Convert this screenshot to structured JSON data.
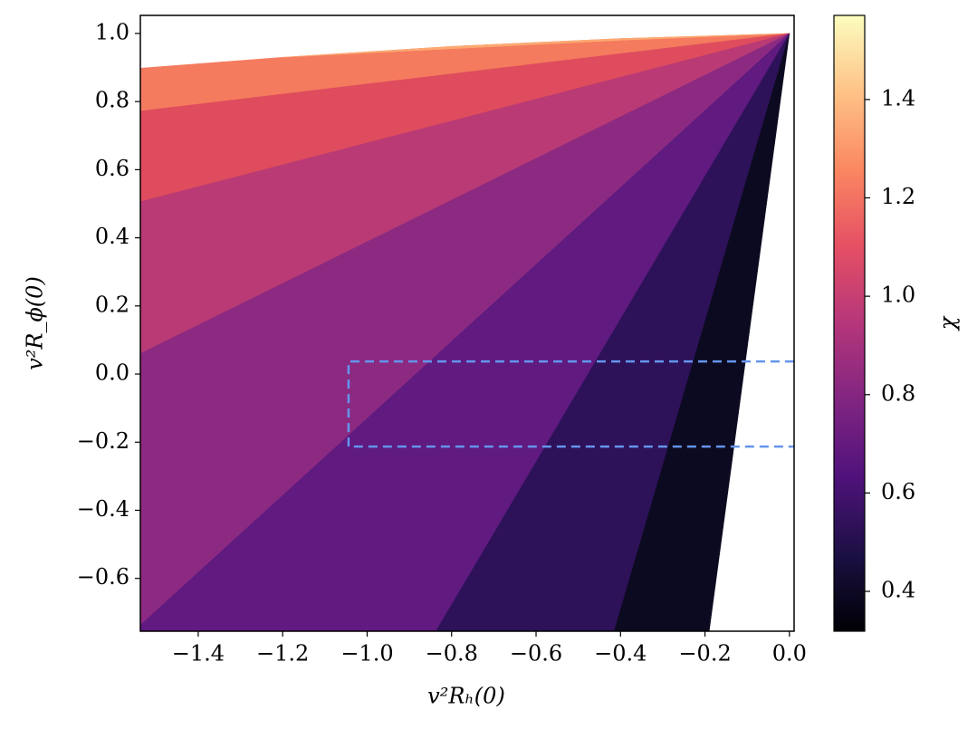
{
  "chart_data": {
    "type": "contour",
    "xlabel": "v²Rₕ(0)",
    "ylabel": "v²R_ϕ(0)",
    "colorbar_label": "χ",
    "xlim": [
      -1.537,
      0.011
    ],
    "ylim": [
      -0.755,
      1.053
    ],
    "xticks": [
      {
        "value": -1.4,
        "label": "−1.4"
      },
      {
        "value": -1.2,
        "label": "−1.2"
      },
      {
        "value": -1.0,
        "label": "−1.0"
      },
      {
        "value": -0.8,
        "label": "−0.8"
      },
      {
        "value": -0.6,
        "label": "−0.6"
      },
      {
        "value": -0.4,
        "label": "−0.4"
      },
      {
        "value": -0.2,
        "label": "−0.2"
      },
      {
        "value": 0,
        "label": "0.0"
      }
    ],
    "yticks": [
      {
        "value": -0.6,
        "label": "−0.6"
      },
      {
        "value": -0.4,
        "label": "−0.4"
      },
      {
        "value": -0.2,
        "label": "−0.2"
      },
      {
        "value": 0,
        "label": "0.0"
      },
      0.2,
      0.4,
      0.6,
      0.8,
      {
        "value": 1.0,
        "label": "1.0"
      }
    ],
    "clim": [
      0.319,
      1.571
    ],
    "cticks": [
      0.4,
      0.6,
      0.8,
      {
        "value": 1.0,
        "label": "1.0"
      },
      1.2,
      1.4
    ],
    "colormap": [
      "#000004",
      "#1c1044",
      "#4f127b",
      "#812581",
      "#b5367a",
      "#e55064",
      "#fb8761",
      "#fec287",
      "#fcfdbf"
    ],
    "bands": [
      {
        "color": "#f47b5e",
        "points": [
          [
            0,
            1
          ],
          [
            -0.4,
            0.985
          ],
          [
            -0.8,
            0.962
          ],
          [
            -1.2,
            0.93
          ],
          [
            -1.537,
            0.898
          ],
          [
            -1.537,
            0.772
          ]
        ]
      },
      {
        "color": "#fca972",
        "points": [
          [
            0,
            1
          ],
          [
            -0.4,
            0.985
          ],
          [
            -0.8,
            0.962
          ],
          [
            -1.2,
            0.93
          ],
          [
            -0.8,
            0.955
          ],
          [
            -0.4,
            0.98
          ]
        ]
      },
      {
        "color": "#df4c5d",
        "points": [
          [
            0,
            1
          ],
          [
            -1.537,
            0.772
          ],
          [
            -1.537,
            0.506
          ]
        ]
      },
      {
        "color": "#b93a74",
        "points": [
          [
            0,
            1
          ],
          [
            -1.537,
            0.506
          ],
          [
            -1.537,
            0.06
          ]
        ]
      },
      {
        "color": "#8c2a81",
        "points": [
          [
            0,
            1
          ],
          [
            -1.537,
            0.06
          ],
          [
            -1.537,
            -0.737
          ]
        ]
      },
      {
        "color": "#601a80",
        "points": [
          [
            0,
            1
          ],
          [
            -1.537,
            -0.737
          ],
          [
            -1.537,
            -0.755
          ],
          [
            -0.837,
            -0.755
          ]
        ]
      },
      {
        "color": "#2d1159",
        "points": [
          [
            0,
            1
          ],
          [
            -0.837,
            -0.755
          ],
          [
            -0.415,
            -0.755
          ]
        ]
      },
      {
        "color": "#0c0a20",
        "points": [
          [
            0,
            1
          ],
          [
            -0.415,
            -0.755
          ],
          [
            -0.19,
            -0.755
          ]
        ]
      }
    ],
    "box": {
      "color": "#6495ed",
      "x": [
        -1.044,
        0.011
      ],
      "y": [
        -0.213,
        0.037
      ]
    }
  }
}
